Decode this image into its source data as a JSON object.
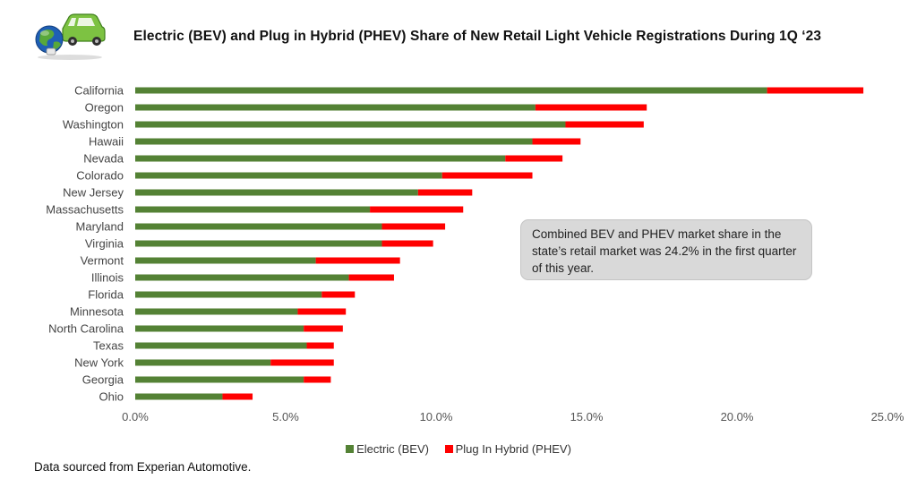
{
  "title": "Electric (BEV) and Plug in Hybrid (PHEV) Share of New Retail Light Vehicle Registrations During 1Q ‘23",
  "logo_icon": "electric-car-globe-icon",
  "annotation": "Combined BEV and PHEV market share in the state’s retail market was 24.2% in the first quarter of this year.",
  "source_note": "Data sourced from Experian Automotive.",
  "colors": {
    "bev": "#548235",
    "phev": "#ff0000",
    "annotation_bg": "#d9d9d9"
  },
  "chart_data": {
    "type": "bar",
    "orientation": "horizontal",
    "stacked": true,
    "title": "Electric (BEV) and Plug in Hybrid (PHEV) Share of New Retail Light Vehicle Registrations During 1Q ‘23",
    "categories": [
      "California",
      "Oregon",
      "Washington",
      "Hawaii",
      "Nevada",
      "Colorado",
      "New Jersey",
      "Massachusetts",
      "Maryland",
      "Virginia",
      "Vermont",
      "Illinois",
      "Florida",
      "Minnesota",
      "North Carolina",
      "Texas",
      "New York",
      "Georgia",
      "Ohio"
    ],
    "series": [
      {
        "name": "Electric (BEV)",
        "color": "#548235",
        "values": [
          21.0,
          13.3,
          14.3,
          13.2,
          12.3,
          10.2,
          9.4,
          7.8,
          8.2,
          8.2,
          6.0,
          7.1,
          6.2,
          5.4,
          5.6,
          5.7,
          4.5,
          5.6,
          2.9
        ]
      },
      {
        "name": "Plug In Hybrid (PHEV)",
        "color": "#ff0000",
        "values": [
          3.2,
          3.7,
          2.6,
          1.6,
          1.9,
          3.0,
          1.8,
          3.1,
          2.1,
          1.7,
          2.8,
          1.5,
          1.1,
          1.6,
          1.3,
          0.9,
          2.1,
          0.9,
          1.0
        ]
      }
    ],
    "xlim": [
      0,
      25
    ],
    "xticks": [
      0,
      5,
      10,
      15,
      20,
      25
    ],
    "xtick_labels": [
      "0.0%",
      "5.0%",
      "10.0%",
      "15.0%",
      "20.0%",
      "25.0%"
    ],
    "xlabel": "",
    "ylabel": "",
    "grid": false,
    "legend": {
      "position": "bottom-center",
      "entries": [
        "Electric (BEV)",
        "Plug In Hybrid (PHEV)"
      ]
    }
  }
}
